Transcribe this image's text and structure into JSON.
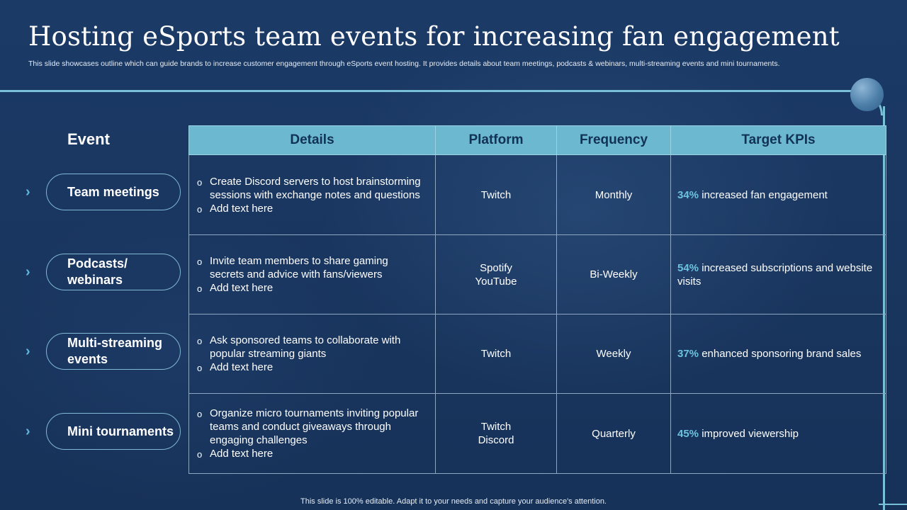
{
  "title": "Hosting eSports team events for increasing fan engagement",
  "subtitle": "This slide showcases outline which can guide brands to increase customer engagement through eSports event hosting. It provides details about team meetings, podcasts & webinars, multi-streaming events and mini tournaments.",
  "event_header": "Event",
  "columns": [
    "Details",
    "Platform",
    "Frequency",
    "Target KPIs"
  ],
  "rows": [
    {
      "event": "Team meetings",
      "details": [
        "Create Discord servers to host brainstorming sessions with exchange notes and questions",
        "Add text here"
      ],
      "platform": [
        "Twitch"
      ],
      "frequency": "Monthly",
      "kpi_pct": "34%",
      "kpi_text": "increased fan engagement"
    },
    {
      "event": "Podcasts/ webinars",
      "details": [
        "Invite  team members to share gaming secrets and advice with fans/viewers",
        "Add text here"
      ],
      "platform": [
        "Spotify",
        "YouTube"
      ],
      "frequency": "Bi-Weekly",
      "kpi_pct": "54%",
      "kpi_text": "increased subscriptions and website visits"
    },
    {
      "event": "Multi-streaming events",
      "details": [
        "Ask sponsored teams to collaborate with popular streaming giants",
        "Add text here"
      ],
      "platform": [
        "Twitch"
      ],
      "frequency": "Weekly",
      "kpi_pct": "37%",
      "kpi_text": "enhanced sponsoring brand sales"
    },
    {
      "event": "Mini tournaments",
      "details": [
        "Organize micro tournaments  inviting popular teams and conduct giveaways through engaging challenges",
        "Add text here"
      ],
      "platform": [
        "Twitch",
        "Discord"
      ],
      "frequency": "Quarterly",
      "kpi_pct": "45%",
      "kpi_text": "improved viewership"
    }
  ],
  "footer": "This slide is 100% editable. Adapt it to your needs and capture your audience's attention.",
  "icons": {
    "event_marker": "chevron-right-icon",
    "bullet": "circle-bullet-icon"
  },
  "colors": {
    "background": "#193661",
    "accent": "#78c0d8",
    "header_fill": "#6cb8d0",
    "kpi_highlight": "#6cc3e0"
  }
}
